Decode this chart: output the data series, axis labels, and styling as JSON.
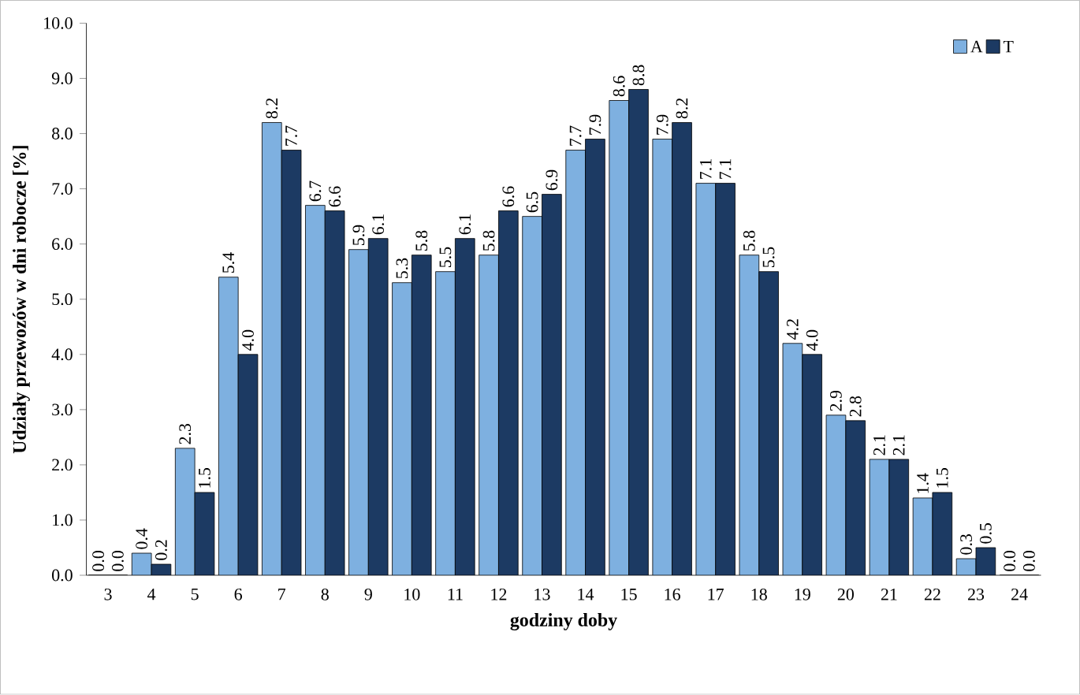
{
  "chart_data": {
    "type": "bar",
    "xlabel": "godziny doby",
    "ylabel": "Udziały przewozów w dni robocze  [%]",
    "categories": [
      "3",
      "4",
      "5",
      "6",
      "7",
      "8",
      "9",
      "10",
      "11",
      "12",
      "13",
      "14",
      "15",
      "16",
      "17",
      "18",
      "19",
      "20",
      "21",
      "22",
      "23",
      "24"
    ],
    "series": [
      {
        "name": "A",
        "color": "#7eb0e0",
        "values": [
          0.0,
          0.4,
          2.3,
          5.4,
          8.2,
          6.7,
          5.9,
          5.3,
          5.5,
          5.8,
          6.5,
          7.7,
          8.6,
          7.9,
          7.1,
          5.8,
          4.2,
          2.9,
          2.1,
          1.4,
          0.3,
          0.0
        ],
        "value_labels": [
          "0.0",
          "0.4",
          "2.3",
          "5.4",
          "8.2",
          "6.7",
          "5.9",
          "5.3",
          "5.5",
          "5.8",
          "6.5",
          "7.7",
          "8.6",
          "7.9",
          "7.1",
          "5.8",
          "4.2",
          "2.9",
          "2.1",
          "1.4",
          "0.3",
          "0.0"
        ]
      },
      {
        "name": "T",
        "color": "#1c3a63",
        "values": [
          0.0,
          0.2,
          1.5,
          4.0,
          7.7,
          6.6,
          6.1,
          5.8,
          6.1,
          6.6,
          6.9,
          7.9,
          8.8,
          8.2,
          7.1,
          5.5,
          4.0,
          2.8,
          2.1,
          1.5,
          0.5,
          0.0
        ],
        "value_labels": [
          "0.0",
          "0.2",
          "1.5",
          "4.0",
          "7.7",
          "6.6",
          "6.1",
          "5.8",
          "6.1",
          "6.6",
          "6.9",
          "7.9",
          "8.8",
          "8.2",
          "7.1",
          "5.5",
          "4.0",
          "2.8",
          "2.1",
          "1.5",
          "0.5",
          "0.0"
        ]
      }
    ],
    "ylim": [
      0,
      10
    ],
    "yticks": [
      {
        "value": 0,
        "label": "0.0"
      },
      {
        "value": 1,
        "label": "1.0"
      },
      {
        "value": 2,
        "label": "2.0"
      },
      {
        "value": 3,
        "label": "3.0"
      },
      {
        "value": 4,
        "label": "4.0"
      },
      {
        "value": 5,
        "label": "5.0"
      },
      {
        "value": 6,
        "label": "6.0"
      },
      {
        "value": 7,
        "label": "7.0"
      },
      {
        "value": 8,
        "label": "8.0"
      },
      {
        "value": 9,
        "label": "9.0"
      },
      {
        "value": 10,
        "label": "10.0"
      }
    ],
    "legend": "top right"
  }
}
